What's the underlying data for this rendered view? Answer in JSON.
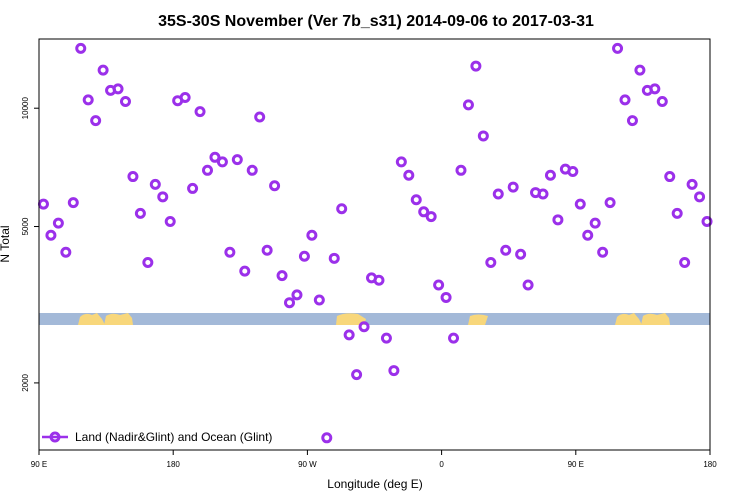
{
  "chart_data": {
    "type": "scatter",
    "title": "35S-30S November (Ver 7b_s31)   2014-09-06 to 2017-03-31",
    "xlabel": "Longitude (deg E)",
    "ylabel": "N Total",
    "x_axis_longitude_range": [
      90,
      450
    ],
    "x_ticks": [
      {
        "value": 90,
        "label": "90 E"
      },
      {
        "value": 180,
        "label": "180"
      },
      {
        "value": 270,
        "label": "90 W"
      },
      {
        "value": 360,
        "label": "0"
      },
      {
        "value": 450,
        "label": "90 E"
      },
      {
        "value": 540,
        "label": "180"
      }
    ],
    "xlim": [
      90,
      540
    ],
    "y_scale": "log",
    "y_ticks": [
      2000,
      5000,
      10000
    ],
    "ylim": [
      1350,
      15000
    ],
    "legend": {
      "position": "bottom-left",
      "label": "Land (Nadir&Glint) and Ocean (Glint)"
    },
    "colors": {
      "marker": "#9b30ea",
      "ocean": "#a3b9d8",
      "land": "#f8d77b"
    },
    "series": [
      {
        "x": [
          93,
          98,
          103,
          108,
          113,
          118,
          123,
          128,
          133,
          138,
          143,
          148,
          153,
          158,
          163,
          168,
          173,
          178,
          183,
          188,
          193,
          198,
          203,
          208,
          213,
          218,
          223,
          228,
          233,
          238,
          243,
          248,
          253,
          258,
          263,
          268,
          273,
          278,
          283,
          288,
          293,
          298,
          303,
          308,
          313,
          318,
          323,
          328,
          333,
          338,
          343,
          348,
          353,
          358,
          363,
          368,
          373,
          378,
          383,
          388,
          393,
          398,
          403,
          408,
          413,
          418,
          423,
          428,
          433,
          438,
          443,
          448,
          453,
          458,
          463,
          468,
          473,
          478,
          483,
          488,
          493,
          498,
          503,
          508,
          513,
          518,
          523,
          528,
          533,
          538
        ],
        "y": [
          5700,
          4750,
          5100,
          4300,
          5750,
          14200,
          10500,
          9300,
          12500,
          11100,
          11200,
          10400,
          6700,
          5400,
          4050,
          6400,
          5950,
          5150,
          10450,
          10650,
          6250,
          9800,
          6950,
          7500,
          7300,
          4300,
          7400,
          3850,
          6950,
          9500,
          4350,
          6350,
          3750,
          3200,
          3350,
          4200,
          4750,
          3250,
          1450,
          4150,
          5550,
          2650,
          2100,
          2780,
          3700,
          3650,
          2600,
          2150,
          7300,
          6750,
          5850,
          5450,
          5300,
          3550,
          3300,
          2600,
          6950,
          10200,
          12800,
          8500,
          4050,
          6050,
          4350,
          6300,
          4250,
          3550,
          6100,
          6050,
          6750,
          5200,
          7000,
          6900,
          5700,
          4750,
          5100,
          4300,
          5750,
          14200,
          10500,
          9300,
          12500,
          11100,
          11200,
          10400,
          6700,
          5400,
          4050,
          6400,
          5950,
          5150
        ]
      }
    ]
  }
}
